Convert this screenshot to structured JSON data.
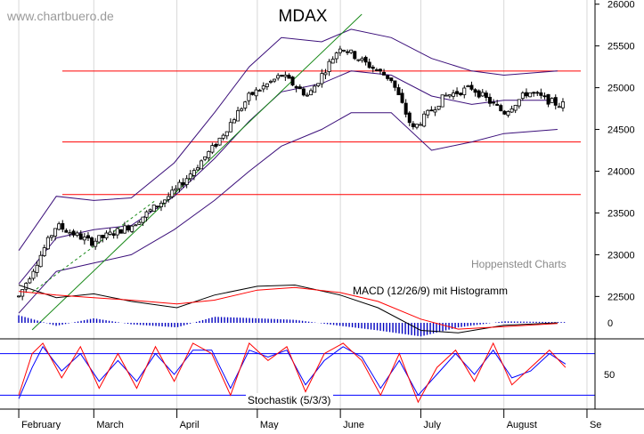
{
  "watermark": "www.chartbuero.de",
  "credit": "Hoppenstedt Charts",
  "colors": {
    "candle_up": "#ffffff",
    "candle_down": "#000000",
    "candle_outline": "#000000",
    "bollinger": "#3b0f7a",
    "support_lines": "#ff0000",
    "trendline": "#1a8a1a",
    "macd": "#000000",
    "macd_signal": "#ff0000",
    "histogram": "#0000c0",
    "stoch_k": "#ff0000",
    "stoch_d": "#0000ff",
    "stoch_levels": "#0000ff"
  },
  "chart_data": [
    {
      "type": "candlestick",
      "title": "MDAX",
      "y_ticks": [
        22500,
        23000,
        23500,
        24000,
        24500,
        25000,
        25500,
        26000
      ],
      "ylim": [
        21950,
        26050
      ],
      "x_months": [
        "February",
        "March",
        "April",
        "May",
        "June",
        "July",
        "August",
        "Se"
      ],
      "horizontal_levels": [
        25200,
        24350,
        23720
      ],
      "trendlines": [
        {
          "from": [
            "2006-02-06",
            22100
          ],
          "to": [
            "2006-06-09",
            25880
          ],
          "style": "solid"
        },
        {
          "from": [
            "2006-02-06",
            22550
          ],
          "to": [
            "2006-03-24",
            23650
          ],
          "style": "dashed"
        }
      ],
      "series_trend": [
        [
          "2006-02-01",
          22500
        ],
        [
          "2006-02-15",
          23350
        ],
        [
          "2006-02-28",
          23150
        ],
        [
          "2006-03-15",
          23350
        ],
        [
          "2006-03-31",
          23750
        ],
        [
          "2006-04-15",
          24300
        ],
        [
          "2006-04-28",
          24900
        ],
        [
          "2006-05-10",
          25150
        ],
        [
          "2006-05-20",
          24900
        ],
        [
          "2006-06-01",
          25500
        ],
        [
          "2006-06-10",
          25300
        ],
        [
          "2006-06-20",
          25100
        ],
        [
          "2006-06-28",
          24500
        ],
        [
          "2006-07-10",
          24900
        ],
        [
          "2006-07-20",
          25000
        ],
        [
          "2006-08-01",
          24700
        ],
        [
          "2006-08-10",
          24950
        ],
        [
          "2006-08-21",
          24800
        ]
      ],
      "bollinger_upper": [
        [
          "2006-02-01",
          23050
        ],
        [
          "2006-02-15",
          23700
        ],
        [
          "2006-03-01",
          23650
        ],
        [
          "2006-03-15",
          23680
        ],
        [
          "2006-03-31",
          24100
        ],
        [
          "2006-04-15",
          24700
        ],
        [
          "2006-04-28",
          25250
        ],
        [
          "2006-05-10",
          25600
        ],
        [
          "2006-05-25",
          25550
        ],
        [
          "2006-06-05",
          25700
        ],
        [
          "2006-06-20",
          25600
        ],
        [
          "2006-07-05",
          25350
        ],
        [
          "2006-07-20",
          25200
        ],
        [
          "2006-08-01",
          25150
        ],
        [
          "2006-08-21",
          25200
        ]
      ],
      "bollinger_middle": [
        [
          "2006-02-01",
          22650
        ],
        [
          "2006-02-15",
          23200
        ],
        [
          "2006-03-01",
          23300
        ],
        [
          "2006-03-15",
          23350
        ],
        [
          "2006-03-31",
          23700
        ],
        [
          "2006-04-15",
          24150
        ],
        [
          "2006-04-28",
          24600
        ],
        [
          "2006-05-10",
          24950
        ],
        [
          "2006-05-25",
          25050
        ],
        [
          "2006-06-05",
          25200
        ],
        [
          "2006-06-20",
          25150
        ],
        [
          "2006-07-05",
          24900
        ],
        [
          "2006-07-20",
          24800
        ],
        [
          "2006-08-01",
          24850
        ],
        [
          "2006-08-21",
          24850
        ]
      ],
      "bollinger_lower": [
        [
          "2006-02-01",
          22300
        ],
        [
          "2006-02-15",
          22800
        ],
        [
          "2006-03-01",
          22900
        ],
        [
          "2006-03-15",
          23000
        ],
        [
          "2006-03-31",
          23300
        ],
        [
          "2006-04-15",
          23650
        ],
        [
          "2006-04-28",
          24000
        ],
        [
          "2006-05-10",
          24300
        ],
        [
          "2006-05-25",
          24500
        ],
        [
          "2006-06-05",
          24700
        ],
        [
          "2006-06-20",
          24700
        ],
        [
          "2006-07-05",
          24250
        ],
        [
          "2006-07-20",
          24350
        ],
        [
          "2006-08-01",
          24450
        ],
        [
          "2006-08-21",
          24500
        ]
      ]
    },
    {
      "type": "line",
      "label": "MACD (12/26/9) mit Histogramm",
      "y_ticks": [
        0
      ],
      "ylim": [
        -120,
        360
      ],
      "macd": [
        [
          "2006-02-01",
          300
        ],
        [
          "2006-02-15",
          200
        ],
        [
          "2006-03-01",
          230
        ],
        [
          "2006-03-15",
          170
        ],
        [
          "2006-04-01",
          120
        ],
        [
          "2006-04-15",
          220
        ],
        [
          "2006-05-01",
          290
        ],
        [
          "2006-05-15",
          300
        ],
        [
          "2006-06-01",
          220
        ],
        [
          "2006-06-15",
          120
        ],
        [
          "2006-07-01",
          -60
        ],
        [
          "2006-07-15",
          -80
        ],
        [
          "2006-08-01",
          -20
        ],
        [
          "2006-08-21",
          0
        ]
      ],
      "signal": [
        [
          "2006-02-01",
          250
        ],
        [
          "2006-02-15",
          220
        ],
        [
          "2006-03-01",
          200
        ],
        [
          "2006-03-15",
          180
        ],
        [
          "2006-04-01",
          150
        ],
        [
          "2006-04-15",
          180
        ],
        [
          "2006-05-01",
          260
        ],
        [
          "2006-05-15",
          280
        ],
        [
          "2006-06-01",
          240
        ],
        [
          "2006-06-15",
          170
        ],
        [
          "2006-07-01",
          30
        ],
        [
          "2006-07-15",
          -50
        ],
        [
          "2006-08-01",
          -30
        ],
        [
          "2006-08-21",
          -5
        ]
      ]
    },
    {
      "type": "line",
      "label": "Stochastik (5/3/3)",
      "y_ticks": [
        50
      ],
      "ylim": [
        0,
        100
      ],
      "levels": [
        80,
        20
      ],
      "k": [
        [
          "2006-02-01",
          20
        ],
        [
          "2006-02-06",
          80
        ],
        [
          "2006-02-10",
          95
        ],
        [
          "2006-02-17",
          45
        ],
        [
          "2006-02-24",
          90
        ],
        [
          "2006-03-03",
          30
        ],
        [
          "2006-03-10",
          80
        ],
        [
          "2006-03-17",
          30
        ],
        [
          "2006-03-24",
          90
        ],
        [
          "2006-03-31",
          40
        ],
        [
          "2006-04-07",
          95
        ],
        [
          "2006-04-14",
          80
        ],
        [
          "2006-04-21",
          20
        ],
        [
          "2006-04-28",
          95
        ],
        [
          "2006-05-05",
          70
        ],
        [
          "2006-05-12",
          90
        ],
        [
          "2006-05-19",
          25
        ],
        [
          "2006-05-26",
          80
        ],
        [
          "2006-06-02",
          95
        ],
        [
          "2006-06-09",
          70
        ],
        [
          "2006-06-16",
          20
        ],
        [
          "2006-06-23",
          80
        ],
        [
          "2006-06-30",
          10
        ],
        [
          "2006-07-07",
          60
        ],
        [
          "2006-07-14",
          85
        ],
        [
          "2006-07-21",
          40
        ],
        [
          "2006-07-28",
          95
        ],
        [
          "2006-08-04",
          35
        ],
        [
          "2006-08-11",
          60
        ],
        [
          "2006-08-18",
          85
        ],
        [
          "2006-08-24",
          60
        ]
      ],
      "d": [
        [
          "2006-02-01",
          15
        ],
        [
          "2006-02-06",
          60
        ],
        [
          "2006-02-10",
          90
        ],
        [
          "2006-02-17",
          55
        ],
        [
          "2006-02-24",
          80
        ],
        [
          "2006-03-03",
          40
        ],
        [
          "2006-03-10",
          70
        ],
        [
          "2006-03-17",
          40
        ],
        [
          "2006-03-24",
          80
        ],
        [
          "2006-03-31",
          50
        ],
        [
          "2006-04-07",
          85
        ],
        [
          "2006-04-14",
          85
        ],
        [
          "2006-04-21",
          30
        ],
        [
          "2006-04-28",
          85
        ],
        [
          "2006-05-05",
          75
        ],
        [
          "2006-05-12",
          85
        ],
        [
          "2006-05-19",
          35
        ],
        [
          "2006-05-26",
          70
        ],
        [
          "2006-06-02",
          90
        ],
        [
          "2006-06-09",
          75
        ],
        [
          "2006-06-16",
          30
        ],
        [
          "2006-06-23",
          70
        ],
        [
          "2006-06-30",
          20
        ],
        [
          "2006-07-07",
          50
        ],
        [
          "2006-07-14",
          80
        ],
        [
          "2006-07-21",
          50
        ],
        [
          "2006-07-28",
          85
        ],
        [
          "2006-08-04",
          45
        ],
        [
          "2006-08-11",
          55
        ],
        [
          "2006-08-18",
          80
        ],
        [
          "2006-08-24",
          65
        ]
      ]
    }
  ]
}
